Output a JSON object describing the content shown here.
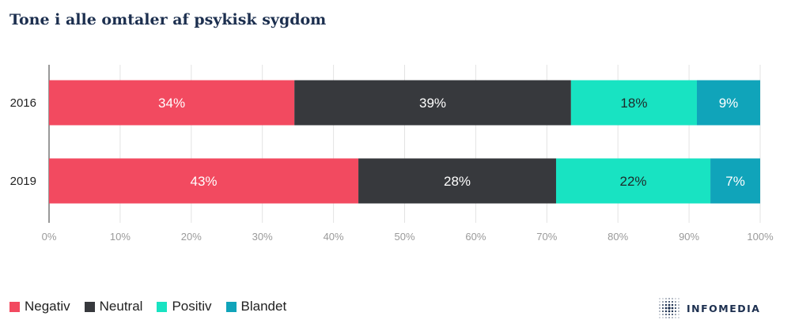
{
  "chart_data": {
    "type": "bar",
    "orientation": "horizontal",
    "stacked": true,
    "title": "Tone i alle omtaler af psykisk sygdom",
    "categories": [
      "2016",
      "2019"
    ],
    "series": [
      {
        "name": "Negativ",
        "color": "#f24a60",
        "values": [
          34.5,
          43.5
        ],
        "labels": [
          "34%",
          "43%"
        ]
      },
      {
        "name": "Neutral",
        "color": "#37393d",
        "values": [
          38.9,
          27.8
        ],
        "labels": [
          "39%",
          "28%"
        ]
      },
      {
        "name": "Positiv",
        "color": "#18e3c2",
        "values": [
          17.7,
          21.7
        ],
        "labels": [
          "18%",
          "22%"
        ]
      },
      {
        "name": "Blandet",
        "color": "#10a4ba",
        "values": [
          8.9,
          7.0
        ],
        "labels": [
          "9%",
          "7%"
        ]
      }
    ],
    "xlim": [
      0,
      100
    ],
    "xticks": [
      "0%",
      "10%",
      "20%",
      "30%",
      "40%",
      "50%",
      "60%",
      "70%",
      "80%",
      "90%",
      "100%"
    ],
    "grid": true,
    "legend_position": "bottom-left"
  },
  "brand": {
    "name": "INFOMEDIA",
    "color": "#1c2f4f"
  }
}
